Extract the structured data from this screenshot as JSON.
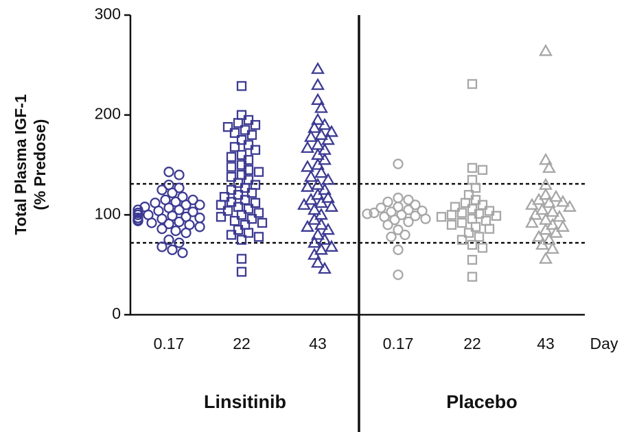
{
  "chart_data": {
    "type": "scatter",
    "ylabel": [
      "Total Plasma IGF-1",
      "(% Predose)"
    ],
    "xlabel": "Day",
    "categories": [
      "0.17",
      "22",
      "43",
      "0.17",
      "22",
      "43"
    ],
    "groups": [
      "Linsitinib",
      "Placebo"
    ],
    "ylim": [
      0,
      300
    ],
    "yticks": [
      0,
      100,
      200,
      300
    ],
    "reference_lines": [
      131,
      72
    ],
    "series": [
      {
        "marker": "circle",
        "color": "#3c3a92",
        "values": [
          143,
          140,
          130,
          127,
          125,
          122,
          118,
          115,
          113,
          112,
          110,
          108,
          107,
          105,
          104,
          103,
          102,
          100,
          99,
          98,
          97,
          96,
          95,
          95,
          94,
          93,
          92,
          91,
          90,
          88,
          86,
          84,
          82,
          75,
          72,
          68,
          65,
          62,
          115,
          110,
          105,
          100,
          97,
          94
        ]
      },
      {
        "marker": "square",
        "color": "#3c3a92",
        "values": [
          229,
          200,
          195,
          192,
          190,
          188,
          185,
          182,
          180,
          175,
          170,
          168,
          165,
          160,
          158,
          155,
          150,
          148,
          145,
          143,
          140,
          138,
          135,
          132,
          130,
          127,
          125,
          122,
          120,
          118,
          115,
          113,
          112,
          110,
          108,
          106,
          104,
          102,
          100,
          98,
          96,
          94,
          92,
          90,
          85,
          82,
          80,
          78,
          75,
          56,
          43
        ]
      },
      {
        "marker": "triangle",
        "color": "#3c3a92",
        "values": [
          246,
          230,
          215,
          207,
          195,
          190,
          187,
          183,
          180,
          178,
          175,
          170,
          167,
          165,
          160,
          155,
          150,
          148,
          142,
          138,
          135,
          130,
          128,
          125,
          120,
          117,
          115,
          112,
          110,
          108,
          105,
          100,
          95,
          90,
          88,
          85,
          80,
          75,
          72,
          68,
          65,
          60,
          52,
          46
        ]
      },
      {
        "marker": "circle",
        "color": "#a6a6a6",
        "values": [
          151,
          117,
          115,
          113,
          110,
          108,
          107,
          105,
          104,
          103,
          102,
          101,
          100,
          99,
          98,
          96,
          95,
          93,
          90,
          85,
          80,
          78,
          65,
          40
        ]
      },
      {
        "marker": "square",
        "color": "#a6a6a6",
        "values": [
          231,
          147,
          145,
          135,
          127,
          120,
          115,
          112,
          110,
          108,
          106,
          104,
          102,
          101,
          100,
          99,
          98,
          96,
          94,
          92,
          90,
          88,
          86,
          82,
          78,
          75,
          70,
          67,
          55,
          38
        ]
      },
      {
        "marker": "triangle",
        "color": "#a6a6a6",
        "values": [
          264,
          155,
          147,
          130,
          120,
          118,
          115,
          113,
          112,
          110,
          108,
          105,
          103,
          100,
          98,
          95,
          92,
          90,
          88,
          85,
          82,
          78,
          75,
          70,
          66,
          56
        ]
      }
    ]
  }
}
